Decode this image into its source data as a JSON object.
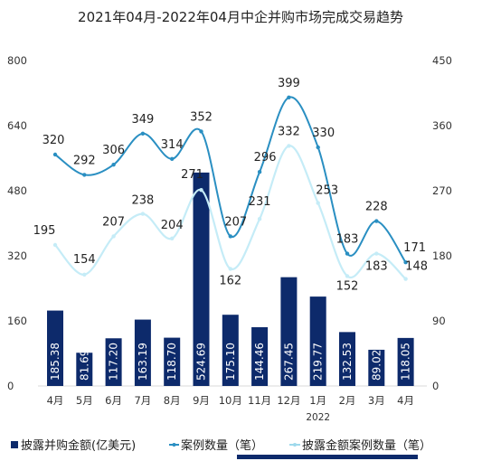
{
  "chart_data": {
    "type": "bar",
    "title": "2021年04月-2022年04月中企并购市场完成交易趋势",
    "categories": [
      "4月",
      "5月",
      "6月",
      "7月",
      "8月",
      "9月",
      "10月",
      "11月",
      "12月",
      "1月",
      "2月",
      "3月",
      "4月"
    ],
    "category_sublabels": [
      "",
      "",
      "",
      "",
      "",
      "",
      "",
      "",
      "",
      "2022",
      "",
      "",
      ""
    ],
    "ylim_left": [
      0,
      800
    ],
    "yticks_left": [
      0,
      160,
      320,
      480,
      640,
      800
    ],
    "ylim_right": [
      0,
      450
    ],
    "yticks_right": [
      0,
      90,
      180,
      270,
      360,
      450
    ],
    "grid": false,
    "legend_position": "bottom",
    "series": [
      {
        "name": "披露并购金额(亿美元)",
        "kind": "bar",
        "axis": "left",
        "color": "#0d2a6b",
        "values": [
          185.38,
          81.69,
          117.2,
          163.19,
          118.7,
          524.69,
          175.1,
          144.46,
          267.45,
          219.77,
          132.53,
          89.02,
          118.05
        ],
        "labels": [
          "185.38",
          "81.69",
          "117.20",
          "163.19",
          "118.70",
          "524.69",
          "175.10",
          "144.46",
          "267.45",
          "219.77",
          "132.53",
          "89.02",
          "118.05"
        ]
      },
      {
        "name": "案例数量（笔）",
        "kind": "line",
        "axis": "right",
        "color": "#2a8fc2",
        "values": [
          320,
          292,
          306,
          349,
          314,
          352,
          207,
          296,
          399,
          330,
          183,
          228,
          171
        ]
      },
      {
        "name": "披露金额案例数量（笔）",
        "kind": "line",
        "axis": "right",
        "color": "#c5ecf7",
        "values": [
          195,
          154,
          207,
          238,
          204,
          271,
          162,
          231,
          332,
          253,
          152,
          183,
          148
        ]
      }
    ]
  }
}
